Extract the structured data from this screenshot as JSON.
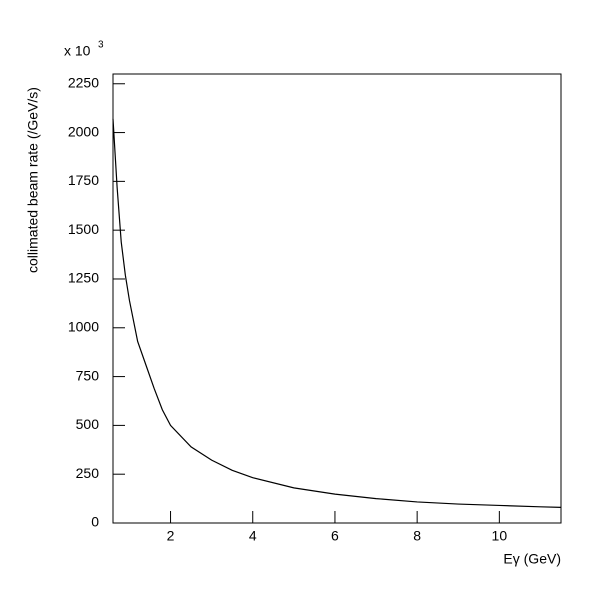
{
  "chart_data": {
    "type": "line",
    "x_label": "Eγ (GeV)",
    "y_label": "collimated beam rate (/GeV/s)",
    "y_multiplier": "x 10",
    "y_multiplier_exponent": "3",
    "x": [
      0.6,
      0.7,
      0.8,
      0.9,
      1.0,
      1.2,
      1.4,
      1.6,
      1.8,
      2.0,
      2.5,
      3.0,
      3.5,
      4.0,
      5.0,
      6.0,
      7.0,
      8.0,
      9.0,
      10.0,
      11.0,
      11.5
    ],
    "series": [
      {
        "color": "#000000",
        "values": [
          2070,
          1720,
          1440,
          1270,
          1140,
          930,
          810,
          690,
          580,
          500,
          390,
          322,
          270,
          232,
          180,
          148,
          125,
          108,
          97,
          90,
          83,
          80
        ]
      }
    ],
    "xlim": [
      0.6,
      11.5
    ],
    "xticks": [
      2,
      4,
      6,
      8,
      10
    ],
    "ylim": [
      0,
      2300
    ],
    "yticks": [
      0,
      250,
      500,
      750,
      1000,
      1250,
      1500,
      1750,
      2000,
      2250
    ]
  }
}
